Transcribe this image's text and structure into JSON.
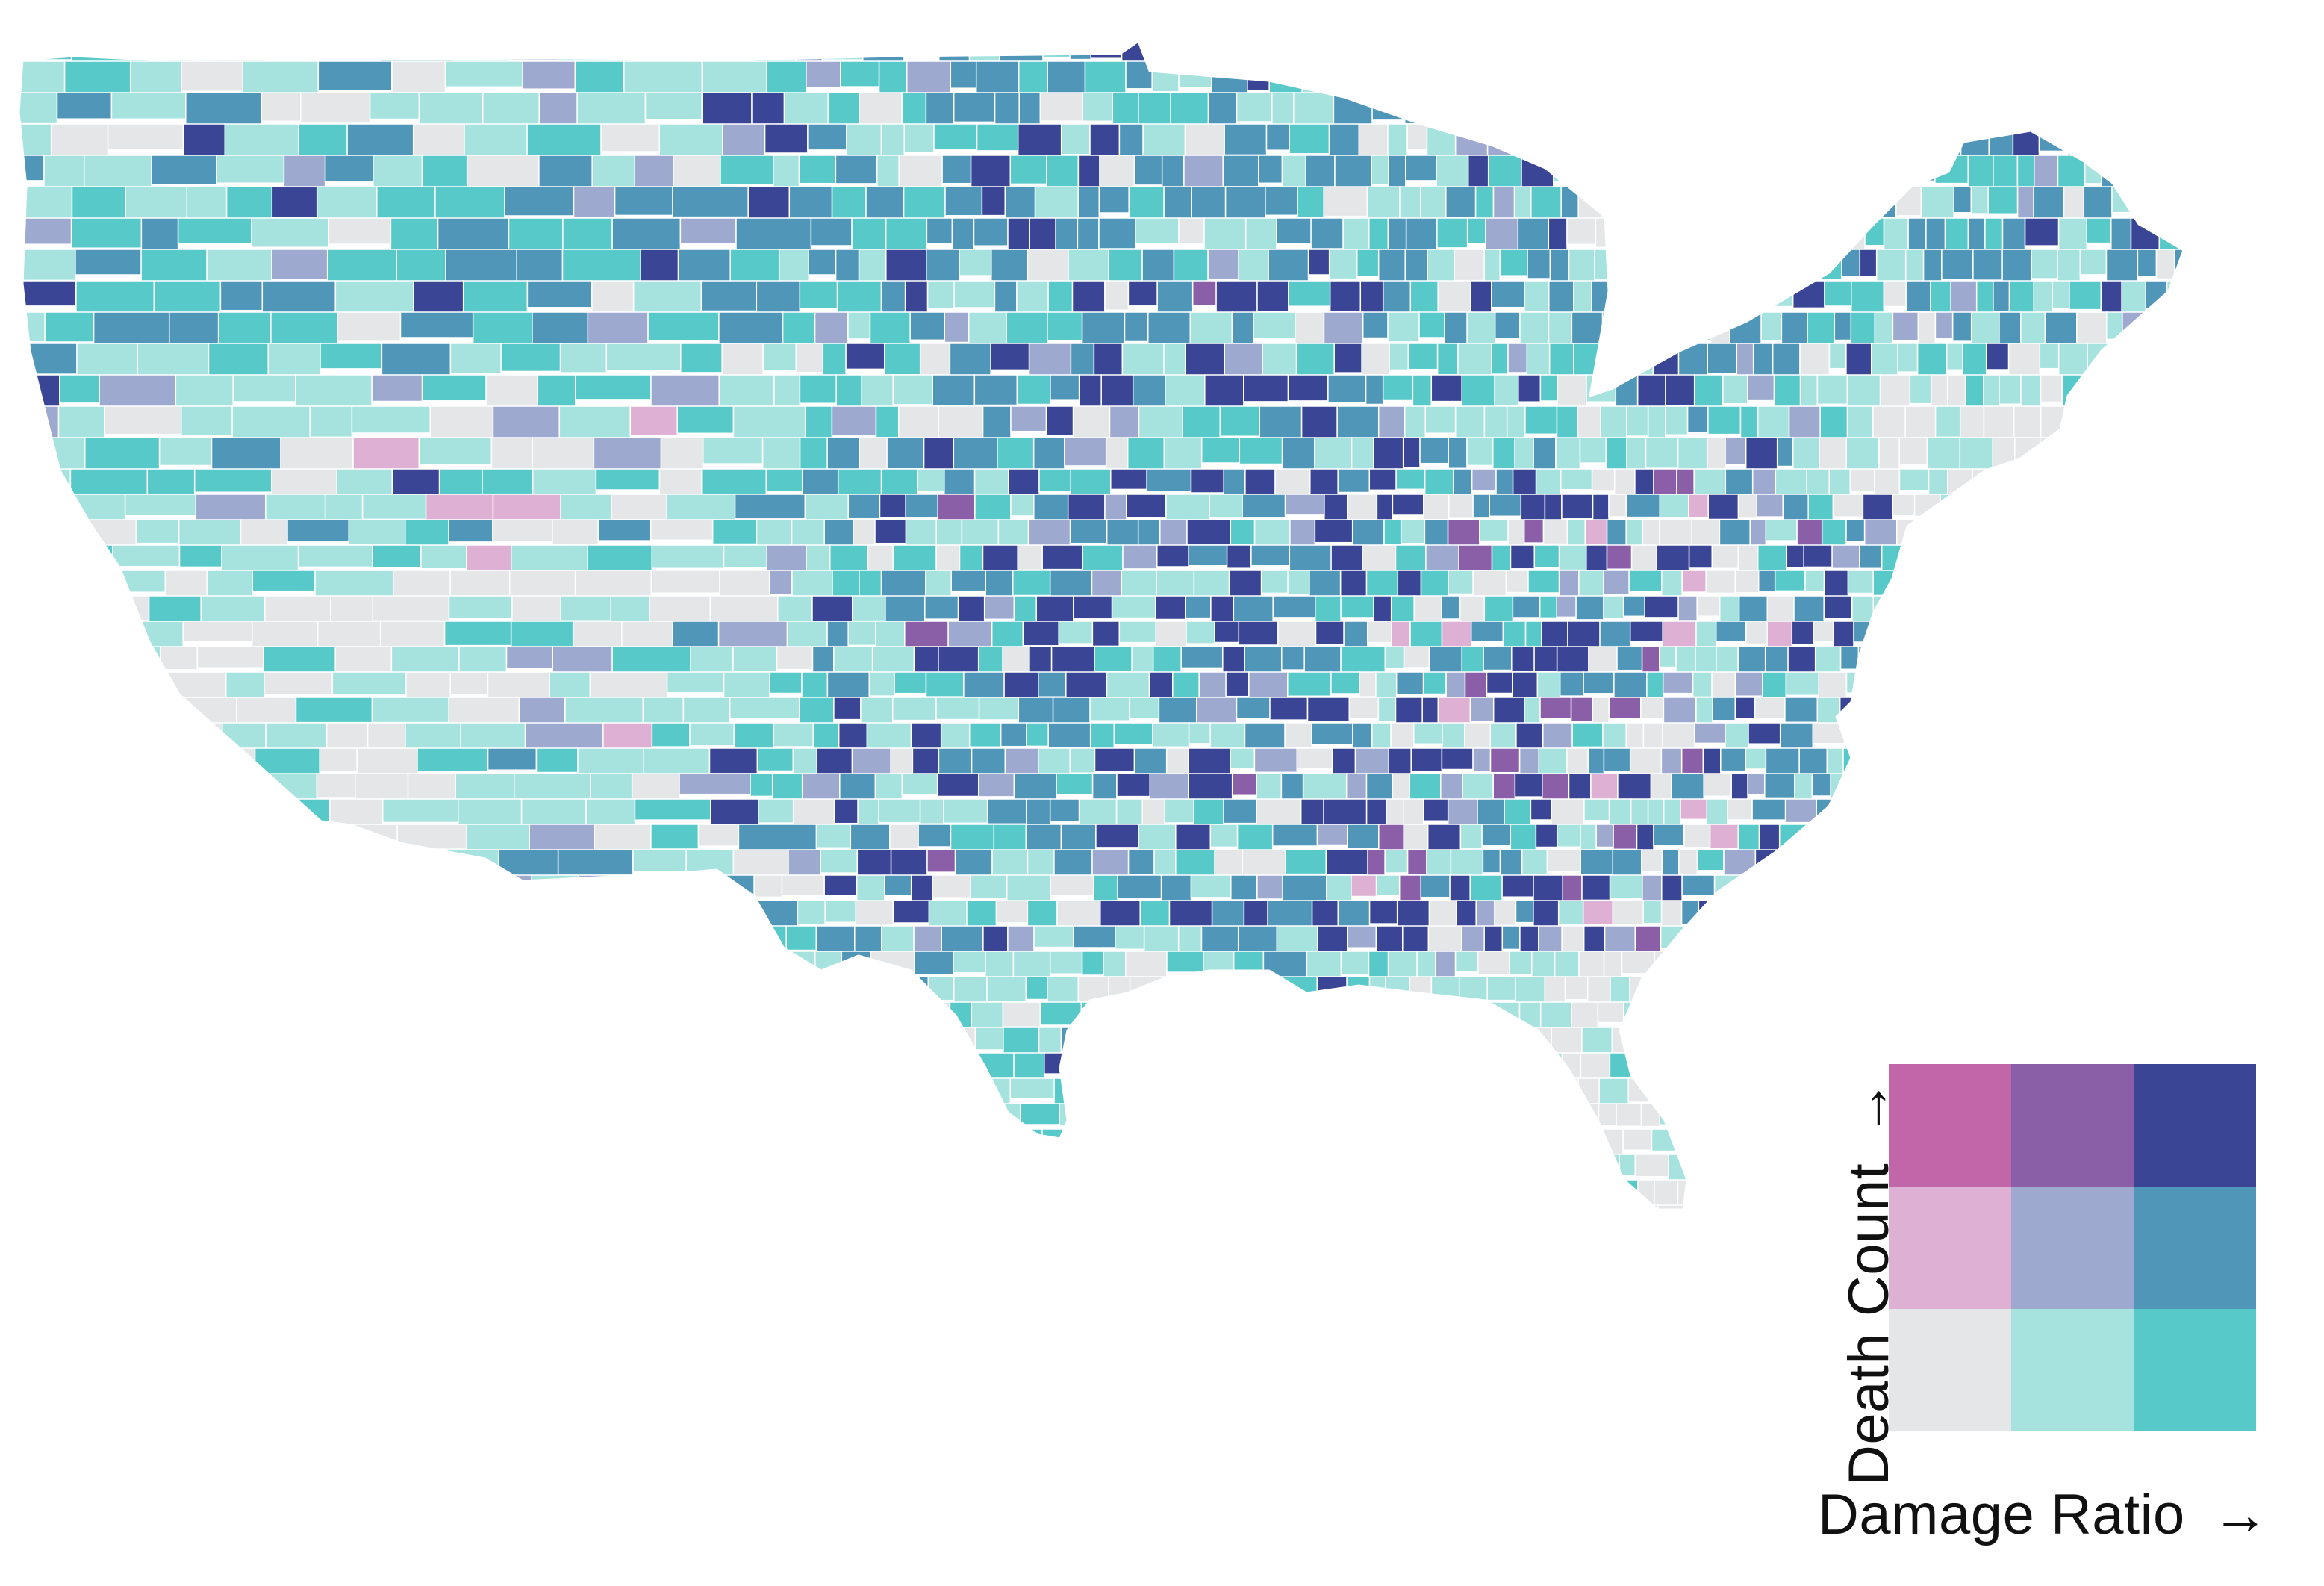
{
  "colors": {
    "low_low": "#e5e6e8",
    "low_mid": "#a6e3df",
    "low_high": "#56c9c8",
    "mid_low": "#deb0d4",
    "mid_mid": "#9ea9d0",
    "mid_high": "#4f96b8",
    "high_low": "#c066a9",
    "high_mid": "#8a5fa8",
    "high_high": "#3b4595",
    "border": "#ffffff"
  },
  "legend": {
    "x_label": "Damage Ratio",
    "y_label": "Death Count",
    "arrow": "→",
    "grid": [
      [
        "high_low",
        "high_mid",
        "high_high"
      ],
      [
        "mid_low",
        "mid_mid",
        "mid_high"
      ],
      [
        "low_low",
        "low_mid",
        "low_high"
      ]
    ]
  },
  "map": {
    "type": "bivariate-choropleth",
    "region": "contiguous-united-states",
    "unit": "county"
  }
}
